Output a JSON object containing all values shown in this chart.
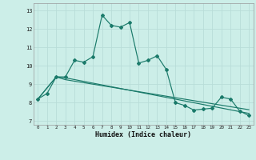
{
  "xlabel": "Humidex (Indice chaleur)",
  "background_color": "#cceee8",
  "grid_color": "#b8ddd8",
  "line_color": "#1a7a6a",
  "xlim": [
    -0.5,
    23.5
  ],
  "ylim": [
    6.8,
    13.4
  ],
  "xticks": [
    0,
    1,
    2,
    3,
    4,
    5,
    6,
    7,
    8,
    9,
    10,
    11,
    12,
    13,
    14,
    15,
    16,
    17,
    18,
    19,
    20,
    21,
    22,
    23
  ],
  "yticks": [
    7,
    8,
    9,
    10,
    11,
    12,
    13
  ],
  "line1_x": [
    0,
    1,
    2,
    3,
    4,
    5,
    6,
    7,
    8,
    9,
    10,
    11,
    12,
    13,
    14,
    15,
    16,
    17,
    18,
    19,
    20,
    21,
    22,
    23
  ],
  "line1_y": [
    8.2,
    8.5,
    9.4,
    9.4,
    10.3,
    10.2,
    10.5,
    12.75,
    12.2,
    12.1,
    12.35,
    10.15,
    10.3,
    10.55,
    9.8,
    8.0,
    7.85,
    7.6,
    7.65,
    7.7,
    8.3,
    8.2,
    7.55,
    7.3
  ],
  "line2_x": [
    0,
    2,
    3,
    23
  ],
  "line2_y": [
    8.2,
    9.4,
    9.35,
    7.42
  ],
  "line3_x": [
    0,
    2,
    3,
    23
  ],
  "line3_y": [
    8.2,
    9.4,
    9.25,
    7.62
  ]
}
